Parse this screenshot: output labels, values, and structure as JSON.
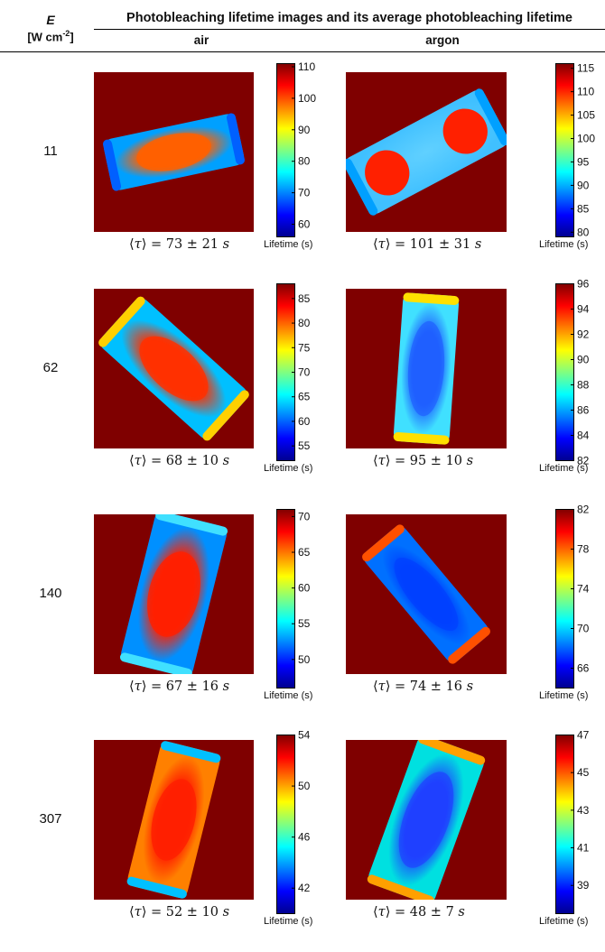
{
  "header": {
    "e_symbol": "E",
    "e_unit_prefix": "[W cm",
    "e_unit_exp": "-2",
    "e_unit_suffix": "]",
    "title": "Photobleaching lifetime images and its average photobleaching lifetime",
    "col_air": "air",
    "col_argon": "argon"
  },
  "colorbar_label": "Lifetime (s)",
  "rows": [
    {
      "e": "11",
      "air": {
        "tau_value": "73",
        "tau_err": "21",
        "cb_ticks": [
          "110",
          "100",
          "90",
          "80",
          "70",
          "60"
        ],
        "cb_range": [
          56,
          111
        ]
      },
      "argon": {
        "tau_value": "101",
        "tau_err": "31",
        "cb_ticks": [
          "115",
          "110",
          "105",
          "100",
          "95",
          "90",
          "85",
          "80"
        ],
        "cb_range": [
          79,
          116
        ]
      }
    },
    {
      "e": "62",
      "air": {
        "tau_value": "68",
        "tau_err": "10",
        "cb_ticks": [
          "85",
          "80",
          "75",
          "70",
          "65",
          "60",
          "55"
        ],
        "cb_range": [
          52,
          88
        ]
      },
      "argon": {
        "tau_value": "95",
        "tau_err": "10",
        "cb_ticks": [
          "96",
          "94",
          "92",
          "90",
          "88",
          "86",
          "84",
          "82"
        ],
        "cb_range": [
          82,
          96
        ]
      }
    },
    {
      "e": "140",
      "air": {
        "tau_value": "67",
        "tau_err": "16",
        "cb_ticks": [
          "70",
          "65",
          "60",
          "55",
          "50"
        ],
        "cb_range": [
          46,
          71
        ]
      },
      "argon": {
        "tau_value": "74",
        "tau_err": "16",
        "cb_ticks": [
          "82",
          "78",
          "74",
          "70",
          "66"
        ],
        "cb_range": [
          64,
          82
        ]
      }
    },
    {
      "e": "307",
      "air": {
        "tau_value": "52",
        "tau_err": "10",
        "cb_ticks": [
          "54",
          "50",
          "46",
          "42"
        ],
        "cb_range": [
          40,
          54
        ]
      },
      "argon": {
        "tau_value": "48",
        "tau_err": "7",
        "cb_ticks": [
          "47",
          "45",
          "43",
          "41",
          "39"
        ],
        "cb_range": [
          37.5,
          47
        ]
      }
    }
  ],
  "colors": {
    "background_dark_red": "#7f0000",
    "jet": [
      "#00008f",
      "#0000ff",
      "#0080ff",
      "#00ffff",
      "#80ff80",
      "#ffff00",
      "#ff8000",
      "#ff0000",
      "#800000"
    ]
  }
}
